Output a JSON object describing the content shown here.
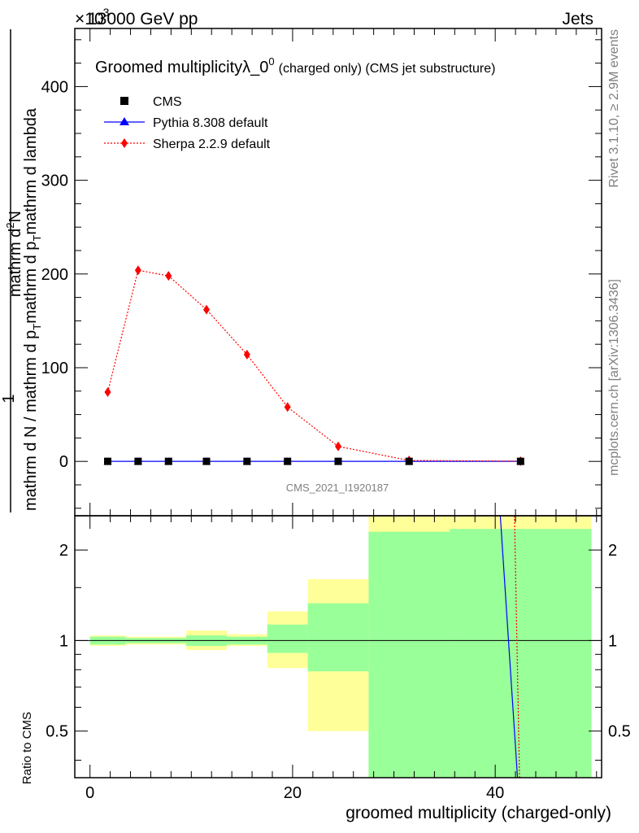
{
  "header": {
    "beam_label": "13000 GeV pp",
    "process_label": "Jets",
    "scale_exponent": "×10",
    "scale_exponent_sup": "-3"
  },
  "side_labels": {
    "rivet": "Rivet 3.1.10, ≥ 2.9M events",
    "mcplots": "mcplots.cern.ch [arXiv:1306.3436]"
  },
  "main_plot": {
    "title": "Groomed multiplicityλ_0",
    "title_sup": "0",
    "title_suffix": "(charged only) (CMS jet substructure)",
    "ylabel_numerator": "mathrm d",
    "ylabel_numerator_sup": "2",
    "ylabel_numerator_tail": "N",
    "ylabel_one": "1",
    "ylabel_denominator": "mathrm d N / mathrm d p",
    "ylabel_denominator_sub": "T",
    "ylabel_denominator_mid": "mathrm d p",
    "ylabel_denominator_mid_sub": "T",
    "ylabel_denominator_tail": "mathrm d lambda",
    "analysis_id": "CMS_2021_I1920187",
    "y_ticks": [
      "0",
      "100",
      "200",
      "300",
      "400"
    ]
  },
  "ratio_plot": {
    "ylabel": "Ratio to CMS",
    "y_ticks": [
      "0.5",
      "1",
      "2"
    ],
    "x_ticks": [
      "0",
      "20",
      "40"
    ],
    "xlabel": "groomed multiplicity (charged-only)"
  },
  "legend": {
    "entries": [
      {
        "label": "CMS",
        "color": "#000000",
        "marker": "square"
      },
      {
        "label": "Pythia 8.308 default",
        "color": "#0000ff",
        "marker": "triangle"
      },
      {
        "label": "Sherpa 2.2.9 default",
        "color": "#ff0000",
        "marker": "diamond"
      }
    ]
  },
  "chart_data": [
    {
      "type": "line",
      "title": "Groomed multiplicityλ_0^0 (charged only) (CMS jet substructure)",
      "xlabel": "groomed multiplicity (charged-only)",
      "ylabel": "1/(mathrm d N / mathrm d p_T) mathrm d^2N/(mathrm d p_T mathrm d lambda)",
      "y_scale_factor": "×10^-3",
      "xlim": [
        -1.5,
        50.5
      ],
      "ylim": [
        -58,
        462
      ],
      "bin_edges": [
        0,
        3.5,
        6,
        9.5,
        13.5,
        17.5,
        21.5,
        27.5,
        35.5,
        49.5
      ],
      "x": [
        1.75,
        4.75,
        7.75,
        11.5,
        15.5,
        19.5,
        24.5,
        31.5,
        42.5
      ],
      "series": [
        {
          "name": "CMS",
          "color": "#000000",
          "marker": "square",
          "values": [
            0.05,
            0.05,
            0.05,
            0.05,
            0.05,
            0.05,
            0.05,
            0.05,
            0.05
          ]
        },
        {
          "name": "Pythia 8.308 default",
          "color": "#0000ff",
          "marker": "triangle",
          "values": [
            0.05,
            0.05,
            0.05,
            0.05,
            0.05,
            0.05,
            0.05,
            0.05,
            0.05
          ]
        },
        {
          "name": "Sherpa 2.2.9 default",
          "color": "#ff0000",
          "marker": "diamond",
          "values": [
            74,
            204,
            198,
            162,
            114,
            58,
            16,
            1,
            0.3
          ]
        }
      ]
    },
    {
      "type": "area",
      "ylabel": "Ratio to CMS",
      "y_scale": "log",
      "ylim": [
        0.35,
        2.6
      ],
      "xlim": [
        -1.5,
        50.5
      ],
      "reference_line": 1,
      "bands": [
        {
          "name": "total uncertainty",
          "color": "#ffff99",
          "bins": [
            [
              0,
              3.5,
              0.96,
              1.04
            ],
            [
              3.5,
              9.5,
              0.97,
              1.03
            ],
            [
              9.5,
              13.5,
              0.93,
              1.08
            ],
            [
              13.5,
              17.5,
              0.96,
              1.05
            ],
            [
              17.5,
              21.5,
              0.81,
              1.25
            ],
            [
              21.5,
              27.5,
              0.5,
              1.6
            ],
            [
              27.5,
              49.5,
              0.3,
              3.0
            ]
          ]
        },
        {
          "name": "statistical uncertainty",
          "color": "#99ff99",
          "bins": [
            [
              0,
              3.5,
              0.97,
              1.03
            ],
            [
              3.5,
              9.5,
              0.98,
              1.02
            ],
            [
              9.5,
              13.5,
              0.96,
              1.04
            ],
            [
              13.5,
              17.5,
              0.97,
              1.03
            ],
            [
              17.5,
              21.5,
              0.91,
              1.13
            ],
            [
              21.5,
              27.5,
              0.79,
              1.33
            ],
            [
              27.5,
              35.5,
              0.3,
              2.3
            ],
            [
              35.5,
              49.5,
              0.3,
              2.35
            ]
          ]
        }
      ],
      "ratio_lines": [
        {
          "name": "Pythia 8.308 default",
          "color": "#0000ff",
          "from": [
            40.5,
            2.6
          ],
          "to": [
            42.2,
            0.35
          ]
        },
        {
          "name": "Sherpa 2.2.9 default",
          "color": "#ff0000",
          "from": [
            41.9,
            2.6
          ],
          "to": [
            42.4,
            0.35
          ]
        }
      ]
    }
  ]
}
